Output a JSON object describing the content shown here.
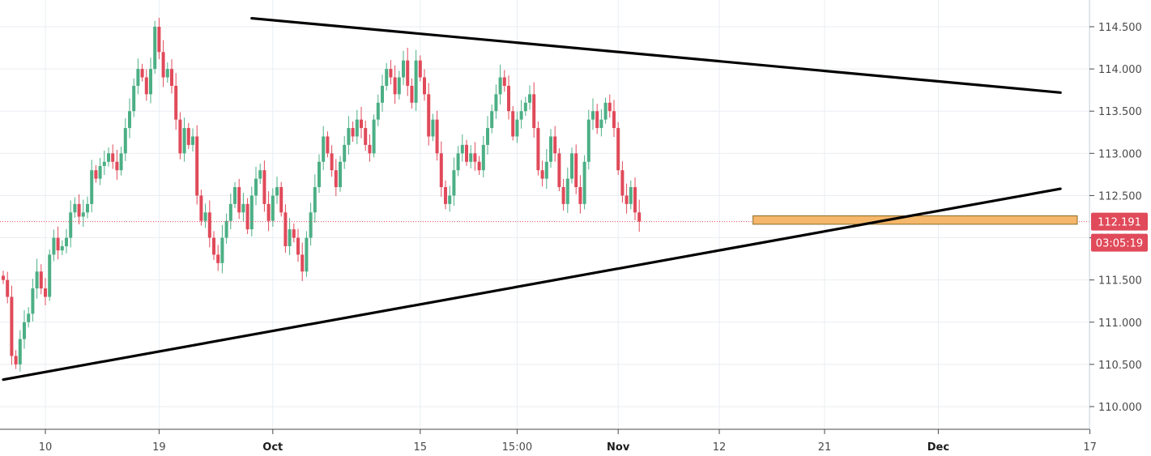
{
  "chart_data": {
    "type": "candlestick",
    "ylim": [
      109.8,
      114.75
    ],
    "y_ticks": [
      "110.000",
      "110.500",
      "111.000",
      "111.500",
      "112.000",
      "112.500",
      "113.000",
      "113.500",
      "114.000",
      "114.500"
    ],
    "x_labels": [
      {
        "label": "10",
        "index": 10,
        "bold": false
      },
      {
        "label": "19",
        "index": 37,
        "bold": false
      },
      {
        "label": "Oct",
        "index": 64,
        "bold": true
      },
      {
        "label": "15",
        "index": 99,
        "bold": false
      },
      {
        "label": "15:00",
        "index": 122,
        "bold": false
      },
      {
        "label": "Nov",
        "index": 146,
        "bold": true
      },
      {
        "label": "12",
        "index": 170,
        "bold": false
      },
      {
        "label": "21",
        "index": 195,
        "bold": false
      },
      {
        "label": "Dec",
        "index": 222,
        "bold": true
      },
      {
        "label": "17",
        "index": 258,
        "bold": false
      }
    ],
    "closes": [
      111.5,
      111.3,
      110.6,
      110.5,
      110.8,
      111.0,
      111.1,
      111.4,
      111.6,
      111.4,
      111.3,
      111.8,
      112.0,
      111.85,
      111.9,
      112.0,
      112.3,
      112.4,
      112.25,
      112.3,
      112.4,
      112.8,
      112.7,
      112.85,
      112.9,
      113.0,
      112.9,
      112.8,
      113.0,
      113.3,
      113.5,
      113.8,
      114.0,
      113.9,
      113.7,
      114.0,
      114.5,
      114.2,
      113.9,
      114.0,
      113.8,
      113.4,
      113.0,
      113.3,
      113.1,
      113.2,
      112.5,
      112.2,
      112.3,
      112.0,
      111.8,
      111.7,
      112.0,
      112.2,
      112.4,
      112.6,
      112.3,
      112.4,
      112.1,
      112.5,
      112.7,
      112.8,
      112.4,
      112.2,
      112.5,
      112.6,
      112.3,
      111.9,
      112.1,
      112.0,
      111.8,
      111.6,
      112.0,
      112.3,
      112.6,
      112.9,
      113.2,
      113.0,
      112.8,
      112.6,
      112.9,
      113.1,
      113.3,
      113.2,
      113.4,
      113.3,
      113.1,
      113.0,
      113.4,
      113.6,
      113.8,
      114.0,
      113.9,
      113.7,
      113.9,
      114.1,
      113.8,
      113.6,
      114.1,
      113.9,
      113.7,
      113.2,
      113.4,
      113.0,
      112.6,
      112.4,
      112.5,
      112.8,
      113.0,
      113.1,
      112.9,
      113.0,
      112.9,
      112.8,
      113.1,
      113.3,
      113.5,
      113.7,
      113.9,
      113.8,
      113.5,
      113.2,
      113.4,
      113.5,
      113.6,
      113.7,
      113.3,
      112.8,
      112.7,
      112.9,
      113.2,
      113.0,
      112.6,
      112.4,
      112.7,
      113.0,
      112.6,
      112.4,
      112.9,
      113.4,
      113.5,
      113.3,
      113.4,
      113.6,
      113.5,
      113.3,
      112.8,
      112.5,
      112.4,
      112.6,
      112.3,
      112.191
    ],
    "last_price": "112.191",
    "countdown": "03:05:19",
    "support_zone": [
      112.16,
      112.26
    ],
    "trendlines": [
      {
        "from": [
          0,
          110.32
        ],
        "to": [
          251,
          112.58
        ]
      },
      {
        "from": [
          59,
          114.6
        ],
        "to": [
          251,
          113.72
        ]
      }
    ],
    "colors": {
      "up": "#4caf85",
      "down": "#e04a5a",
      "trendline": "#000000",
      "support_fill": "#f5b76b",
      "support_stroke": "#8a6b2a",
      "price_line": "#e04a5a",
      "grid": "#e9eef2"
    }
  }
}
